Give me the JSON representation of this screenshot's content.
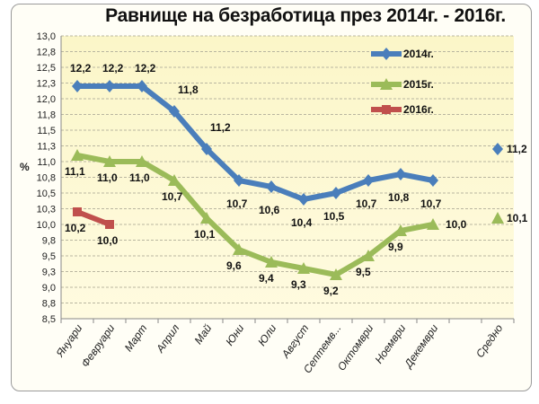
{
  "chart_data": {
    "type": "line",
    "title": "Равнище на безработица през 2014г. - 2016г.",
    "ylabel": "%",
    "xlabel": "",
    "ylim": [
      8.5,
      13.0
    ],
    "ytick_step": 0.25,
    "yticks": [
      "13,0",
      "12,8",
      "12,5",
      "12,3",
      "12,0",
      "11,8",
      "11,5",
      "11,3",
      "11,0",
      "10,8",
      "10,5",
      "10,3",
      "10,0",
      "9,8",
      "9,5",
      "9,3",
      "9,0",
      "8,8",
      "8,5"
    ],
    "categories": [
      "Януари",
      "Февруари",
      "Март",
      "Април",
      "Май",
      "Юни",
      "Юли",
      "Август",
      "Септемв...",
      "Октомври",
      "Ноември",
      "Декември",
      "",
      "Средно"
    ],
    "grid": true,
    "legend_position": "top-right",
    "series": [
      {
        "name": "2014г.",
        "color": "#4a7ebb",
        "marker": "diamond",
        "values": [
          12.2,
          12.2,
          12.2,
          11.8,
          11.2,
          10.7,
          10.6,
          10.4,
          10.5,
          10.7,
          10.8,
          10.7,
          null,
          11.2
        ],
        "labels": [
          "12,2",
          "12,2",
          "12,2",
          "11,8",
          "11,2",
          "10,7",
          "10,6",
          "10,4",
          "10,5",
          "10,7",
          "10,8",
          "10,7",
          "",
          "11,2"
        ]
      },
      {
        "name": "2015г.",
        "color": "#9bbb59",
        "marker": "triangle",
        "values": [
          11.1,
          11.0,
          11.0,
          10.7,
          10.1,
          9.6,
          9.4,
          9.3,
          9.2,
          9.5,
          9.9,
          10.0,
          null,
          10.1
        ],
        "labels": [
          "11,1",
          "11,0",
          "11,0",
          "10,7",
          "10,1",
          "9,6",
          "9,4",
          "9,3",
          "9,2",
          "9,5",
          "9,9",
          "10,0",
          "",
          "10,1"
        ]
      },
      {
        "name": "2016г.",
        "color": "#c0504d",
        "marker": "square",
        "values": [
          10.2,
          10.0,
          null,
          null,
          null,
          null,
          null,
          null,
          null,
          null,
          null,
          null,
          null,
          null
        ],
        "labels": [
          "10,2",
          "10,0",
          "",
          "",
          "",
          "",
          "",
          "",
          "",
          "",
          "",
          "",
          "",
          ""
        ]
      }
    ]
  }
}
